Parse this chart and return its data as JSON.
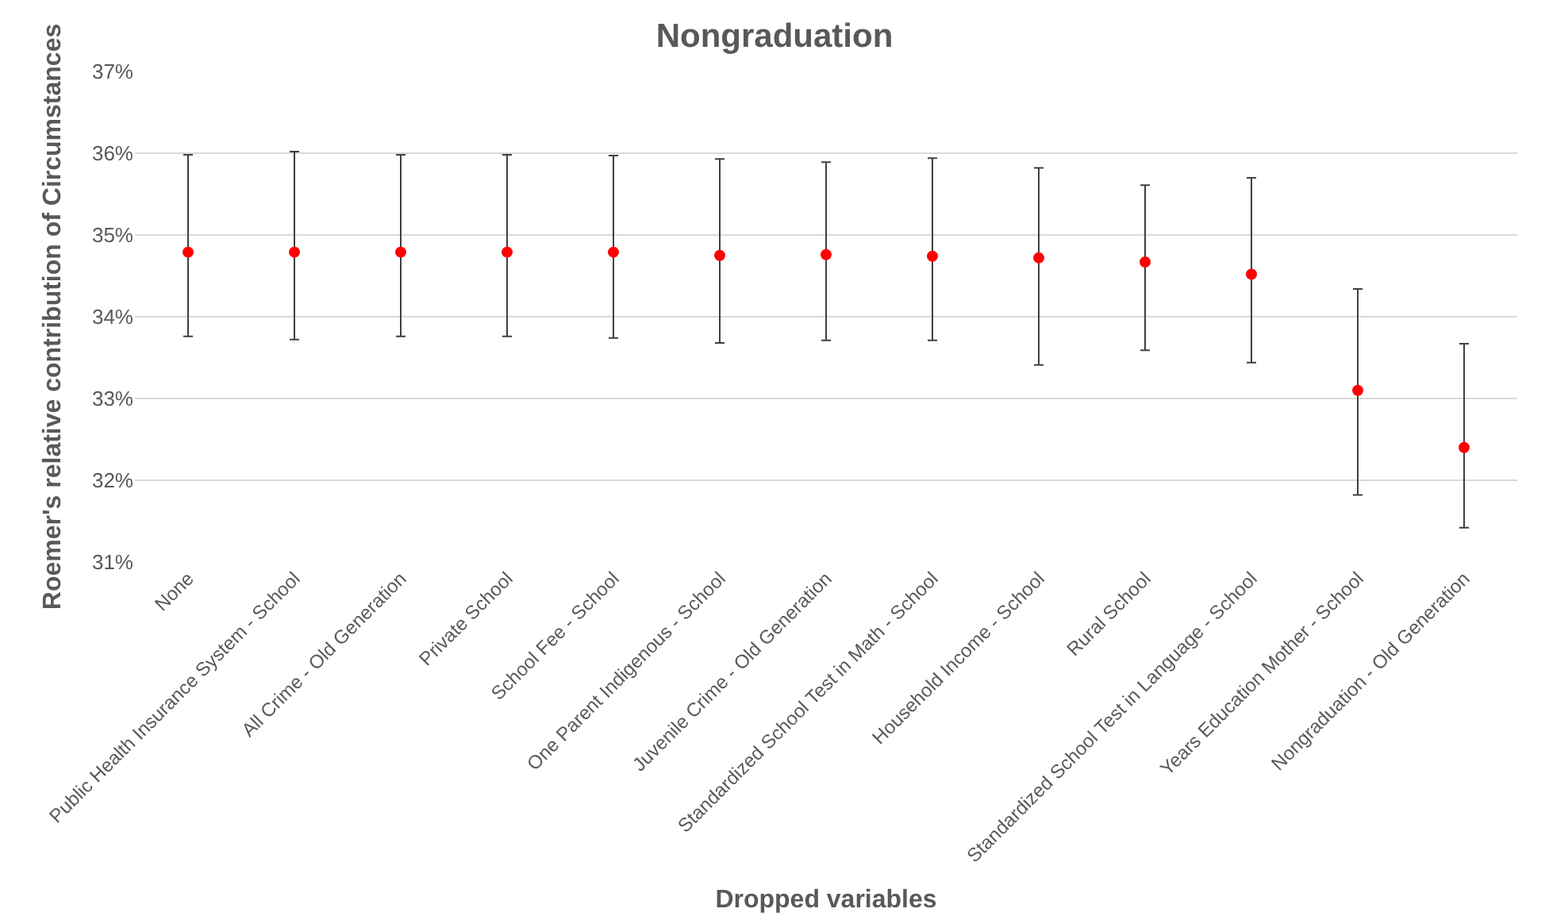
{
  "chart_data": {
    "type": "scatter",
    "title": "Nongraduation",
    "xlabel": "Dropped variables",
    "ylabel": "Roemer's relative contribution of Circumstances",
    "categories": [
      "None",
      "Public Health Insurance System - School",
      "All Crime - Old Generation",
      "Private School",
      "School Fee - School",
      "One Parent Indigenous - School",
      "Juvenile Crime - Old Generation",
      "Standardized School Test in Math - School",
      "Household Income - School",
      "Rural School",
      "Standardized School Test in Language - School",
      "Years Education Mother - School",
      "Nongraduation - Old Generation"
    ],
    "series": [
      {
        "color": "#ff0000",
        "values": [
          34.79,
          34.79,
          34.79,
          34.79,
          34.79,
          34.75,
          34.76,
          34.74,
          34.72,
          34.67,
          34.52,
          33.1,
          32.4
        ],
        "errors": [
          [
            33.76,
            35.98
          ],
          [
            33.72,
            36.02
          ],
          [
            33.76,
            35.98
          ],
          [
            33.76,
            35.98
          ],
          [
            33.74,
            35.97
          ],
          [
            33.68,
            35.93
          ],
          [
            33.71,
            35.89
          ],
          [
            33.71,
            35.94
          ],
          [
            33.41,
            35.82
          ],
          [
            33.59,
            35.61
          ],
          [
            33.44,
            35.7
          ],
          [
            31.82,
            34.34
          ],
          [
            31.42,
            33.67
          ]
        ]
      }
    ],
    "ylim": [
      31,
      37
    ],
    "yticks": [
      {
        "value": 31,
        "label": "31%"
      },
      {
        "value": 32,
        "label": "32%"
      },
      {
        "value": 33,
        "label": "33%"
      },
      {
        "value": 34,
        "label": "34%"
      },
      {
        "value": 35,
        "label": "35%"
      },
      {
        "value": 36,
        "label": "36%"
      },
      {
        "value": 37,
        "label": "37%"
      }
    ],
    "grid": "y",
    "marker": "circle"
  }
}
